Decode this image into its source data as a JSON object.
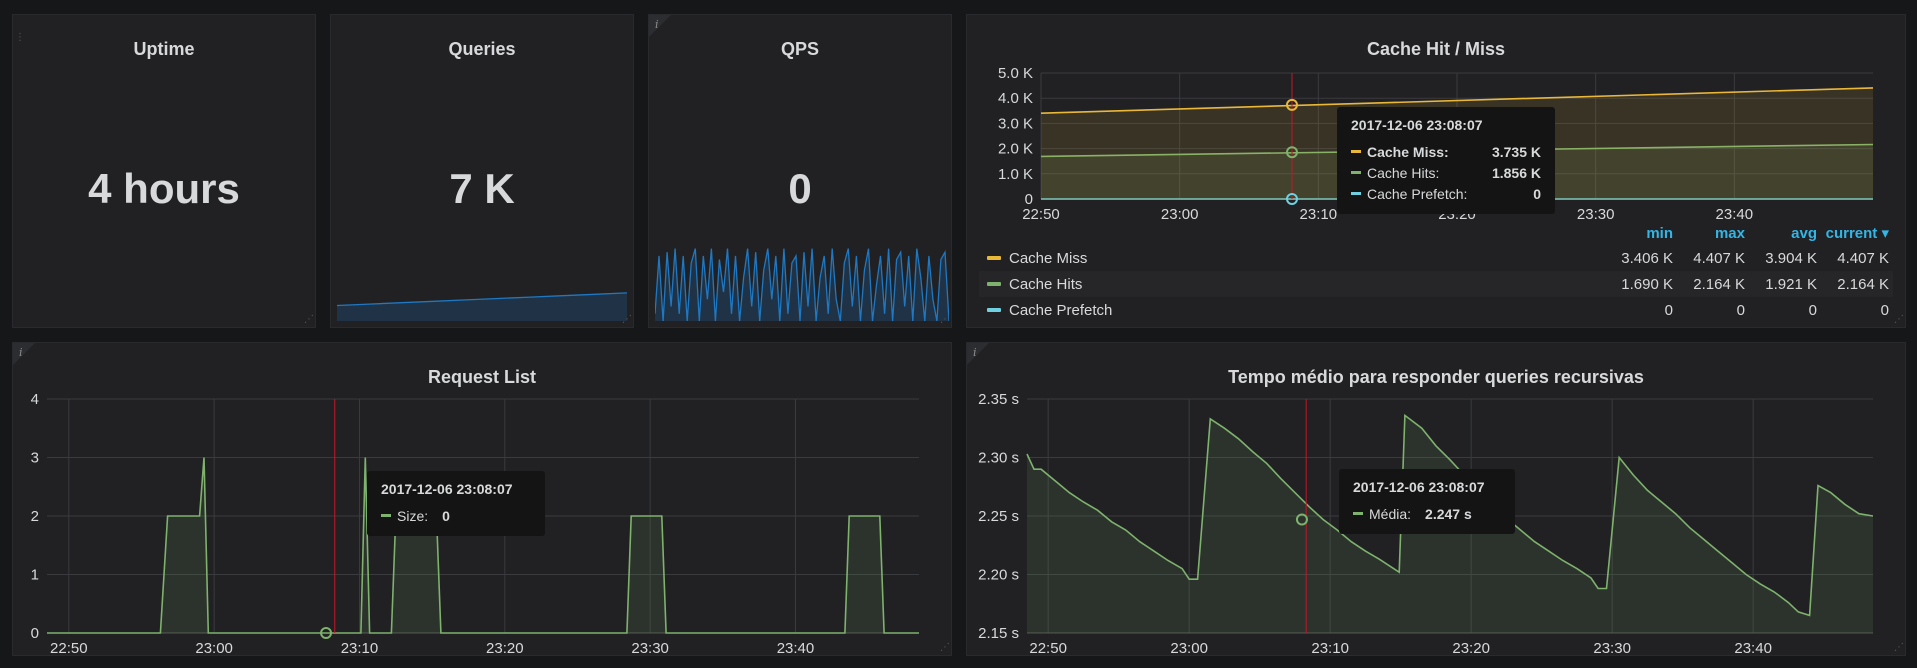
{
  "colors": {
    "orange": "#eab839",
    "green": "#7eb26d",
    "cyan": "#6ed0e0",
    "blue": "#1f78c1",
    "red": "#c4162a",
    "grid": "#3a3b3e",
    "text": "#d8d9da",
    "legend_head": "#33b5e5"
  },
  "uptime": {
    "title": "Uptime",
    "value": "4 hours"
  },
  "queries": {
    "title": "Queries",
    "value": "7 K",
    "sparkline": [
      0.55,
      0.6,
      0.65,
      0.7,
      0.75,
      0.8,
      0.85,
      0.9,
      0.95,
      1.0
    ]
  },
  "qps": {
    "title": "QPS",
    "value": "0",
    "sparkline": [
      0.1,
      0.9,
      0.0,
      0.95,
      0.2,
      1.0,
      0.1,
      0.9,
      0.0,
      0.8,
      1.0,
      0.0,
      0.9,
      0.3,
      1.0,
      0.0,
      0.85,
      0.4,
      1.0,
      0.1,
      0.9,
      0.0,
      0.6,
      1.0,
      0.2,
      0.95,
      0.0,
      0.7,
      1.0,
      0.3,
      0.9,
      0.0,
      1.0,
      0.1,
      0.8,
      0.9,
      0.0,
      0.95,
      0.2,
      1.0,
      0.0,
      0.6,
      0.9,
      0.1,
      1.0,
      0.3,
      0.0,
      0.8,
      1.0,
      0.2,
      0.9,
      0.0,
      0.7,
      1.0,
      0.0,
      0.5,
      0.9,
      0.1,
      1.0,
      0.0,
      0.85,
      0.95,
      0.2,
      0.9,
      0.0,
      1.0,
      0.6,
      0.0,
      0.9,
      0.3,
      0.0,
      0.85,
      0.95,
      0.0
    ]
  },
  "cache": {
    "title": "Cache Hit / Miss",
    "tooltip": {
      "time": "2017-12-06 23:08:07",
      "rows": [
        {
          "label": "Cache Miss:",
          "value": "3.735 K",
          "color": "#eab839",
          "bold": true
        },
        {
          "label": "Cache Hits:",
          "value": "1.856 K",
          "color": "#7eb26d",
          "bold": false
        },
        {
          "label": "Cache Prefetch:",
          "value": "0",
          "color": "#6ed0e0",
          "bold": false
        }
      ]
    },
    "legend": {
      "headers": [
        "min",
        "max",
        "avg",
        "current ▾"
      ],
      "rows": [
        {
          "name": "Cache Miss",
          "color": "#eab839",
          "min": "3.406 K",
          "max": "4.407 K",
          "avg": "3.904 K",
          "current": "4.407 K"
        },
        {
          "name": "Cache Hits",
          "color": "#7eb26d",
          "min": "1.690 K",
          "max": "2.164 K",
          "avg": "1.921 K",
          "current": "2.164 K"
        },
        {
          "name": "Cache Prefetch",
          "color": "#6ed0e0",
          "min": "0",
          "max": "0",
          "avg": "0",
          "current": "0"
        }
      ]
    }
  },
  "request_list": {
    "title": "Request List",
    "tooltip": {
      "time": "2017-12-06 23:08:07",
      "rows": [
        {
          "label": "Size:",
          "value": "0",
          "color": "#7eb26d"
        }
      ]
    }
  },
  "tempo": {
    "title": "Tempo médio para responder queries recursivas",
    "tooltip": {
      "time": "2017-12-06 23:08:07",
      "rows": [
        {
          "label": "Média:",
          "value": "2.247 s",
          "color": "#7eb26d"
        }
      ]
    }
  },
  "chart_data": [
    {
      "type": "area",
      "title": "Cache Hit / Miss",
      "x_tick_labels": [
        "22:50",
        "23:00",
        "23:10",
        "23:20",
        "23:30",
        "23:40"
      ],
      "y_tick_labels": [
        "0",
        "1.0 K",
        "2.0 K",
        "3.0 K",
        "4.0 K",
        "5.0 K"
      ],
      "ylim": [
        0,
        5000
      ],
      "x_range_min": [
        0,
        60
      ],
      "x_ticks_min": [
        0,
        10,
        20,
        30,
        40,
        50
      ],
      "series": [
        {
          "name": "Cache Miss",
          "color": "#eab839",
          "x": [
            -1,
            60
          ],
          "values": [
            3406,
            4407
          ]
        },
        {
          "name": "Cache Hits",
          "color": "#7eb26d",
          "x": [
            -1,
            60
          ],
          "values": [
            1690,
            2164
          ]
        },
        {
          "name": "Cache Prefetch",
          "color": "#6ed0e0",
          "x": [
            -1,
            60
          ],
          "values": [
            0,
            0
          ]
        }
      ],
      "cursor_min": 18.1,
      "grid": true
    },
    {
      "type": "area",
      "title": "Request List",
      "x_tick_labels": [
        "22:50",
        "23:00",
        "23:10",
        "23:20",
        "23:30",
        "23:40"
      ],
      "y_tick_labels": [
        "0",
        "1",
        "2",
        "3",
        "4"
      ],
      "ylim": [
        0,
        4
      ],
      "x_range_min": [
        -1.5,
        58.5
      ],
      "x_ticks_min": [
        0,
        10,
        20,
        30,
        40,
        50
      ],
      "series": [
        {
          "name": "Size",
          "color": "#7eb26d",
          "x": [
            -1.5,
            6.3,
            6.8,
            9.0,
            9.3,
            9.6,
            11.1,
            20.1,
            20.4,
            20.7,
            22.2,
            22.5,
            25.3,
            25.6,
            38.4,
            38.7,
            40.8,
            41.1,
            53.4,
            53.7,
            55.8,
            56.1,
            58.5
          ],
          "values": [
            0,
            0,
            2,
            2,
            3,
            0,
            0,
            0,
            3,
            0,
            0,
            2,
            2,
            0,
            0,
            2,
            2,
            0,
            0,
            2,
            2,
            0,
            0
          ]
        }
      ],
      "cursor_min": 18.3,
      "grid": true
    },
    {
      "type": "area",
      "title": "Tempo médio para responder queries recursivas",
      "x_tick_labels": [
        "22:50",
        "23:00",
        "23:10",
        "23:20",
        "23:30",
        "23:40"
      ],
      "y_tick_labels": [
        "2.15 s",
        "2.20 s",
        "2.25 s",
        "2.30 s",
        "2.35 s"
      ],
      "ylim": [
        2.15,
        2.35
      ],
      "x_range_min": [
        -1.5,
        58.5
      ],
      "x_ticks_min": [
        0,
        10,
        20,
        30,
        40,
        50
      ],
      "series": [
        {
          "name": "Média",
          "color": "#7eb26d",
          "x": [
            -1.5,
            -1.0,
            -0.5,
            0.5,
            1.5,
            2.5,
            3.5,
            4.5,
            5.5,
            6.5,
            7.5,
            8.5,
            9.5,
            10.0,
            10.6,
            11.5,
            12.5,
            13.5,
            14.5,
            15.5,
            16.5,
            17.5,
            18.5,
            19.5,
            20.5,
            21.5,
            22.5,
            23.5,
            24.5,
            24.9,
            25.3,
            26.5,
            27.5,
            28.5,
            29.5,
            30.5,
            31.5,
            32.5,
            33.5,
            34.5,
            35.5,
            36.5,
            37.5,
            38.5,
            39.0,
            39.6,
            40.5,
            41.5,
            42.5,
            43.5,
            44.5,
            45.5,
            46.5,
            47.5,
            48.5,
            49.5,
            50.5,
            51.5,
            52.5,
            53.2,
            54.0,
            54.6,
            55.5,
            56.5,
            57.5,
            58.5
          ],
          "values": [
            2.303,
            2.29,
            2.29,
            2.28,
            2.27,
            2.262,
            2.255,
            2.245,
            2.238,
            2.228,
            2.22,
            2.212,
            2.205,
            2.196,
            2.196,
            2.333,
            2.325,
            2.316,
            2.305,
            2.295,
            2.282,
            2.27,
            2.258,
            2.247,
            2.238,
            2.228,
            2.22,
            2.213,
            2.205,
            2.202,
            2.336,
            2.325,
            2.31,
            2.298,
            2.285,
            2.272,
            2.26,
            2.248,
            2.238,
            2.228,
            2.22,
            2.212,
            2.205,
            2.197,
            2.188,
            2.188,
            2.3,
            2.285,
            2.272,
            2.262,
            2.252,
            2.24,
            2.23,
            2.22,
            2.21,
            2.2,
            2.192,
            2.185,
            2.176,
            2.168,
            2.165,
            2.276,
            2.27,
            2.26,
            2.252,
            2.25
          ]
        }
      ],
      "cursor_min": 18.3,
      "grid": true
    }
  ]
}
